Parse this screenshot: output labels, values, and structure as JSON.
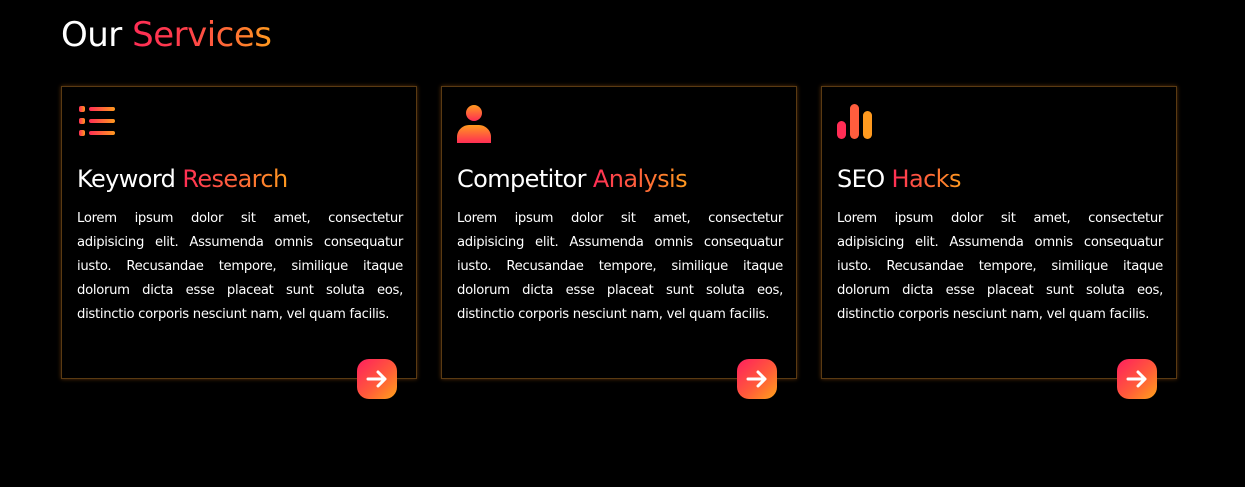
{
  "section": {
    "title_main": "Our",
    "title_accent": "Services"
  },
  "colors": {
    "background": "#000000",
    "gradient_start": "#ff2d55",
    "gradient_end": "#ff9a1f",
    "card_border": "#5a3a12",
    "text": "#ffffff"
  },
  "cards": [
    {
      "icon": "list-icon",
      "title_main": "Keyword",
      "title_accent": "Research",
      "text": "Lorem ipsum dolor sit amet, consectetur adipisicing elit. Assumenda omnis consequatur iusto. Recusandae tempore, similique itaque dolorum dicta esse placeat sunt soluta eos, distinctio corporis nesciunt nam, vel quam facilis.",
      "button_icon": "arrow-right-icon"
    },
    {
      "icon": "user-icon",
      "title_main": "Competitor",
      "title_accent": "Analysis",
      "text": "Lorem ipsum dolor sit amet, consectetur adipisicing elit. Assumenda omnis consequatur iusto. Recusandae tempore, similique itaque dolorum dicta esse placeat sunt soluta eos, distinctio corporis nesciunt nam, vel quam facilis.",
      "button_icon": "arrow-right-icon"
    },
    {
      "icon": "bar-chart-icon",
      "title_main": "SEO",
      "title_accent": "Hacks",
      "text": "Lorem ipsum dolor sit amet, consectetur adipisicing elit. Assumenda omnis consequatur iusto. Recusandae tempore, similique itaque dolorum dicta esse placeat sunt soluta eos, distinctio corporis nesciunt nam, vel quam facilis.",
      "button_icon": "arrow-right-icon"
    }
  ]
}
